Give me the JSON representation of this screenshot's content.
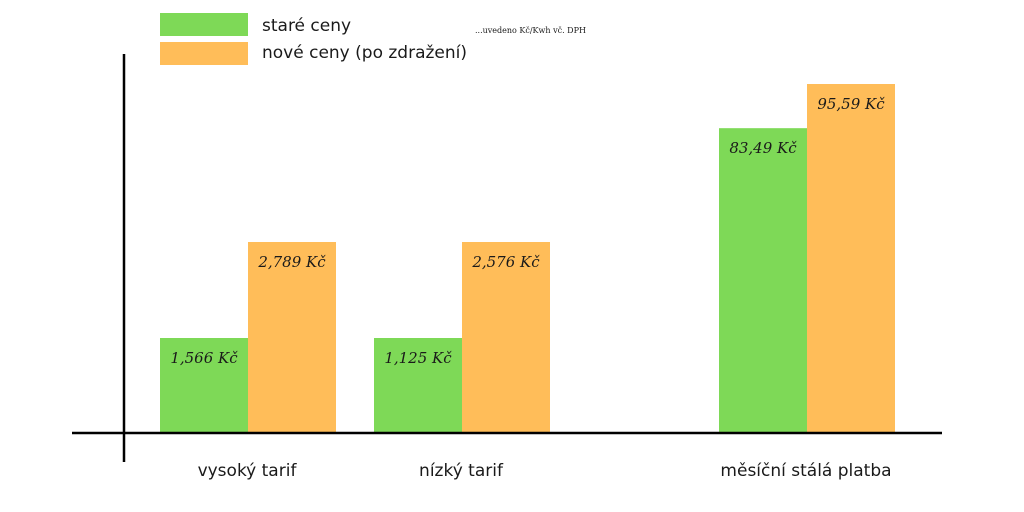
{
  "chart_data": {
    "type": "bar",
    "categories": [
      "vysoký tarif",
      "nízký tarif",
      "měsíční stálá platba"
    ],
    "series": [
      {
        "name": "staré ceny",
        "color": "#7ed957",
        "values": [
          1.566,
          1.125,
          83.49
        ],
        "labels": [
          "1,566 Kč",
          "1,125 Kč",
          "83,49 Kč"
        ]
      },
      {
        "name": "nové ceny (po zdražení)",
        "color": "#ffbd59",
        "values": [
          2.789,
          2.576,
          95.59
        ],
        "labels": [
          "2,789 Kč",
          "2,576 Kč",
          "95,59 Kč"
        ]
      }
    ],
    "annotation": "...uvedeno Kč/Kwh vč. DPH",
    "axis_color": "#000000"
  }
}
